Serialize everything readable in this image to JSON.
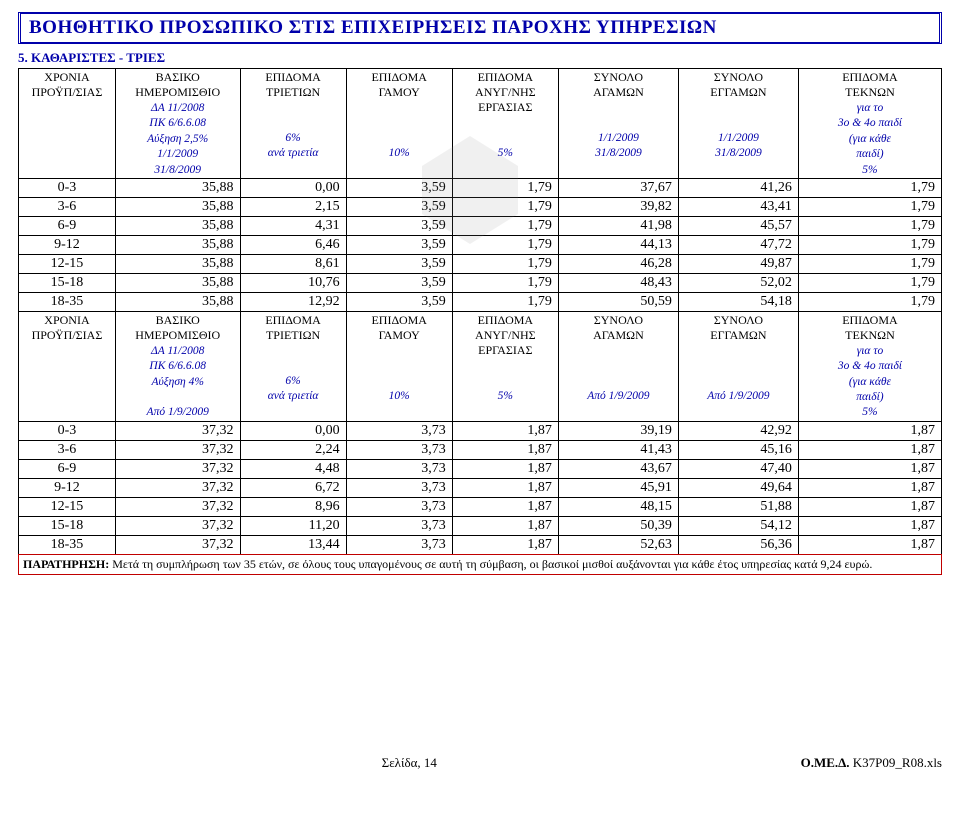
{
  "title": "ΒΟΗΘΗΤΙΚΟ ΠΡΟΣΩΠΙΚΟ ΣΤΙΣ ΕΠΙΧΕΙΡΗΣΕΙΣ ΠΑΡΟΧΗΣ ΥΠΗΡΕΣΙΩΝ",
  "section_label": "5. ΚΑΘΑΡΙΣΤΕΣ - ΤΡΙΕΣ",
  "header_labels": {
    "c0_l1": "ΧΡΟΝΙΑ",
    "c0_l2": "ΠΡΟΫΠ/ΣΙΑΣ",
    "c1_l1": "ΒΑΣΙΚΟ",
    "c1_l2": "ΗΜΕΡΟΜΙΣΘΙΟ",
    "c2_l1": "ΕΠΙΔΟΜΑ",
    "c2_l2": "ΤΡΙΕΤΙΩΝ",
    "c3_l1": "ΕΠΙΔΟΜΑ",
    "c3_l2": "ΓΑΜΟΥ",
    "c4_l1": "ΕΠΙΔΟΜΑ",
    "c4_l2": "ΑΝΥΓ/ΝΗΣ",
    "c4_l3": "ΕΡΓΑΣΙΑΣ",
    "c5_l1": "ΣΥΝΟΛΟ",
    "c5_l2": "ΑΓΑΜΩΝ",
    "c6_l1": "ΣΥΝΟΛΟ",
    "c6_l2": "ΕΓΓΑΜΩΝ",
    "c7_l1": "ΕΠΙΔΟΜΑ",
    "c7_l2": "ΤΕΚΝΩΝ",
    "c7_l3": "για το",
    "c7_l4": "3ο & 4ο παιδί",
    "c7_l5": "(για κάθε",
    "c7_l6": "παιδί)"
  },
  "table1": {
    "sub": {
      "c1_a": "ΔΑ 11/2008",
      "c1_b": "ΠΚ 6/6.6.08",
      "c1_c": "Αύξηση 2,5%",
      "c1_d": "1/1/2009",
      "c1_e": "31/8/2009",
      "c2_a": "6%",
      "c2_b": "ανά τριετία",
      "c3": "10%",
      "c4": "5%",
      "c5_a": "1/1/2009",
      "c5_b": "31/8/2009",
      "c6_a": "1/1/2009",
      "c6_b": "31/8/2009",
      "c7": "5%"
    },
    "rows": [
      [
        "0-3",
        "35,88",
        "0,00",
        "3,59",
        "1,79",
        "37,67",
        "41,26",
        "1,79"
      ],
      [
        "3-6",
        "35,88",
        "2,15",
        "3,59",
        "1,79",
        "39,82",
        "43,41",
        "1,79"
      ],
      [
        "6-9",
        "35,88",
        "4,31",
        "3,59",
        "1,79",
        "41,98",
        "45,57",
        "1,79"
      ],
      [
        "9-12",
        "35,88",
        "6,46",
        "3,59",
        "1,79",
        "44,13",
        "47,72",
        "1,79"
      ],
      [
        "12-15",
        "35,88",
        "8,61",
        "3,59",
        "1,79",
        "46,28",
        "49,87",
        "1,79"
      ],
      [
        "15-18",
        "35,88",
        "10,76",
        "3,59",
        "1,79",
        "48,43",
        "52,02",
        "1,79"
      ],
      [
        "18-35",
        "35,88",
        "12,92",
        "3,59",
        "1,79",
        "50,59",
        "54,18",
        "1,79"
      ]
    ]
  },
  "table2": {
    "sub": {
      "c1_a": "ΔΑ 11/2008",
      "c1_b": "ΠΚ 6/6.6.08",
      "c1_c": "Αύξηση 4%",
      "c1_d": "Από 1/9/2009",
      "c2_a": "6%",
      "c2_b": "ανά τριετία",
      "c3": "10%",
      "c4": "5%",
      "c5_a": "Από 1/9/2009",
      "c6_a": "Από 1/9/2009",
      "c7": "5%"
    },
    "rows": [
      [
        "0-3",
        "37,32",
        "0,00",
        "3,73",
        "1,87",
        "39,19",
        "42,92",
        "1,87"
      ],
      [
        "3-6",
        "37,32",
        "2,24",
        "3,73",
        "1,87",
        "41,43",
        "45,16",
        "1,87"
      ],
      [
        "6-9",
        "37,32",
        "4,48",
        "3,73",
        "1,87",
        "43,67",
        "47,40",
        "1,87"
      ],
      [
        "9-12",
        "37,32",
        "6,72",
        "3,73",
        "1,87",
        "45,91",
        "49,64",
        "1,87"
      ],
      [
        "12-15",
        "37,32",
        "8,96",
        "3,73",
        "1,87",
        "48,15",
        "51,88",
        "1,87"
      ],
      [
        "15-18",
        "37,32",
        "11,20",
        "3,73",
        "1,87",
        "50,39",
        "54,12",
        "1,87"
      ],
      [
        "18-35",
        "37,32",
        "13,44",
        "3,73",
        "1,87",
        "52,63",
        "56,36",
        "1,87"
      ]
    ]
  },
  "note_label": "ΠΑΡΑΤΗΡΗΣΗ:",
  "note_text": " Μετά τη συμπλήρωση των 35 ετών, σε όλους τους υπαγομένους σε αυτή τη σύμβαση, οι βασικοί μισθοί αυξάνονται για κάθε έτος υπηρεσίας κατά 9,24 ευρώ.",
  "footer": {
    "center": "Σελίδα, 14",
    "right_bold": "Ο.ΜΕ.Δ.",
    "right_normal": " Κ37Ρ09_R08.xls"
  },
  "colors": {
    "blue": "#0000aa",
    "red": "#c00000",
    "text": "#000000",
    "bg": "#ffffff"
  }
}
